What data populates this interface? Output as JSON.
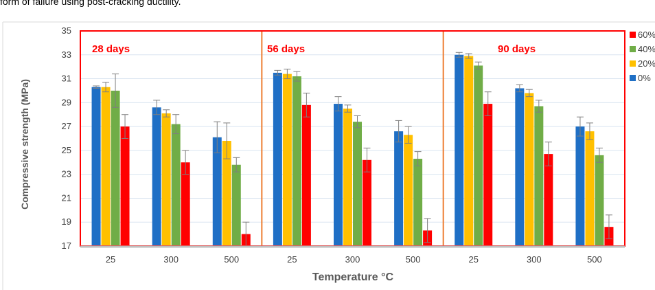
{
  "top_text": "form of failure using post-cracking ductility.",
  "chart_data": {
    "type": "bar",
    "ylabel": "Compressive strength (MPa)",
    "xlabel": "Temperature °C",
    "ylim": [
      17,
      35
    ],
    "yticks": [
      17,
      19,
      21,
      23,
      25,
      27,
      29,
      31,
      33,
      35
    ],
    "grid": true,
    "legend_position": "right",
    "legend_order": [
      "60%",
      "40%",
      "20%",
      "0%"
    ],
    "series": [
      {
        "name": "0%",
        "color": "#1f6fc5"
      },
      {
        "name": "20%",
        "color": "#ffc000"
      },
      {
        "name": "40%",
        "color": "#70ad47"
      },
      {
        "name": "60%",
        "color": "#ff0000"
      }
    ],
    "panel_border_color": "#ff0000",
    "divider_color": "#ed7d31",
    "panels": [
      {
        "label": "28 days",
        "categories": [
          "25",
          "300",
          "500"
        ],
        "values": {
          "0%": [
            30.3,
            28.6,
            26.1
          ],
          "20%": [
            30.3,
            28.1,
            25.8
          ],
          "40%": [
            30.0,
            27.2,
            23.8
          ],
          "60%": [
            27.0,
            24.0,
            18.0
          ]
        },
        "errors": {
          "0%": [
            0.1,
            0.6,
            1.3
          ],
          "20%": [
            0.4,
            0.3,
            1.5
          ],
          "40%": [
            1.4,
            0.8,
            0.6
          ],
          "60%": [
            1.0,
            1.0,
            1.0
          ]
        }
      },
      {
        "label": "56 days",
        "categories": [
          "25",
          "300",
          "500"
        ],
        "values": {
          "0%": [
            31.5,
            28.9,
            26.6
          ],
          "20%": [
            31.4,
            28.5,
            26.3
          ],
          "40%": [
            31.2,
            27.4,
            24.3
          ],
          "60%": [
            28.8,
            24.2,
            18.3
          ]
        },
        "errors": {
          "0%": [
            0.2,
            0.6,
            0.9
          ],
          "20%": [
            0.4,
            0.3,
            0.7
          ],
          "40%": [
            0.4,
            0.5,
            0.6
          ],
          "60%": [
            1.0,
            1.0,
            1.0
          ]
        }
      },
      {
        "label": "90 days",
        "categories": [
          "25",
          "300",
          "500"
        ],
        "values": {
          "0%": [
            33.0,
            30.2,
            27.0
          ],
          "20%": [
            32.9,
            29.8,
            26.6
          ],
          "40%": [
            32.1,
            28.7,
            24.6
          ],
          "60%": [
            28.9,
            24.7,
            18.6
          ]
        },
        "errors": {
          "0%": [
            0.2,
            0.3,
            0.8
          ],
          "20%": [
            0.2,
            0.3,
            0.7
          ],
          "40%": [
            0.3,
            0.5,
            0.6
          ],
          "60%": [
            1.0,
            1.0,
            1.0
          ]
        }
      }
    ]
  }
}
